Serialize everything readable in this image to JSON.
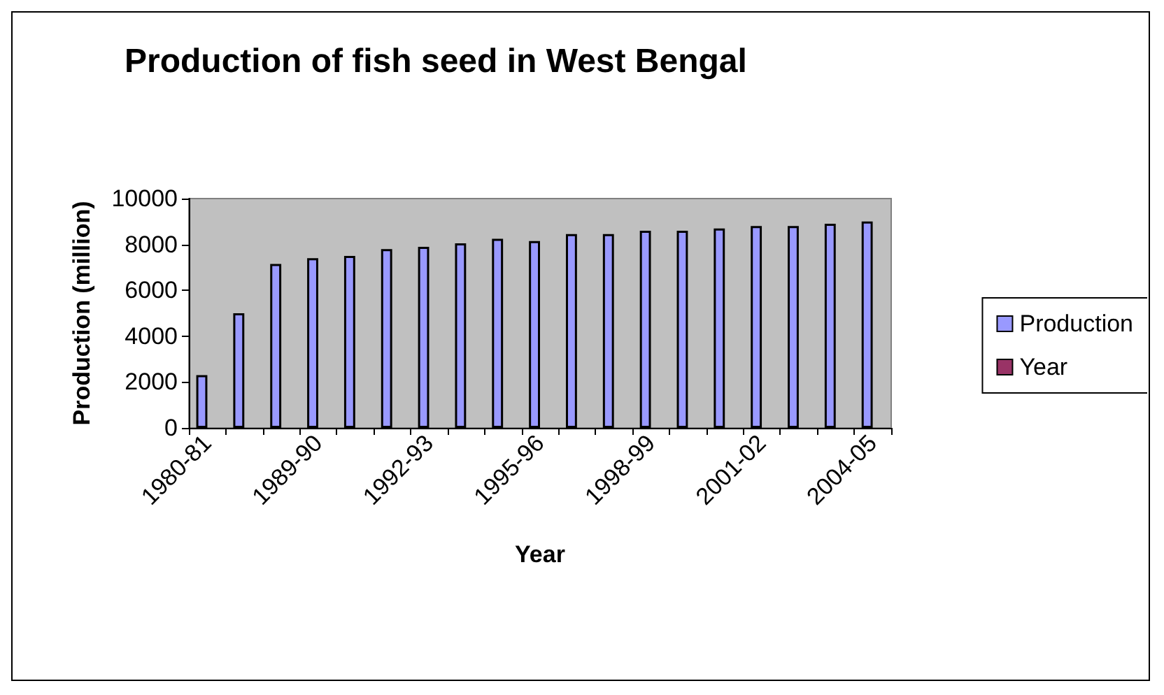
{
  "chart_data": {
    "type": "bar",
    "title": "Production of fish seed in West Bengal",
    "xlabel": "Year",
    "ylabel": "Production (million)",
    "categories": [
      "1980-81",
      null,
      null,
      "1989-90",
      null,
      null,
      "1992-93",
      null,
      null,
      "1995-96",
      null,
      null,
      "1998-99",
      null,
      null,
      "2001-02",
      null,
      null,
      "2004-05"
    ],
    "series": [
      {
        "name": "Production",
        "color": "#9999ff",
        "values": [
          2300,
          5000,
          7150,
          7400,
          7500,
          7800,
          7900,
          8050,
          8250,
          8150,
          8450,
          8450,
          8600,
          8600,
          8700,
          8800,
          8800,
          8900,
          9000
        ]
      },
      {
        "name": "Year",
        "color": "#993366",
        "values": [
          null,
          null,
          null,
          null,
          null,
          null,
          null,
          null,
          null,
          null,
          null,
          null,
          null,
          null,
          null,
          null,
          null,
          null,
          null
        ]
      }
    ],
    "ylim": [
      0,
      10000
    ],
    "yticks": [
      0,
      2000,
      4000,
      6000,
      8000,
      10000
    ],
    "grid": false,
    "legend": "right"
  }
}
